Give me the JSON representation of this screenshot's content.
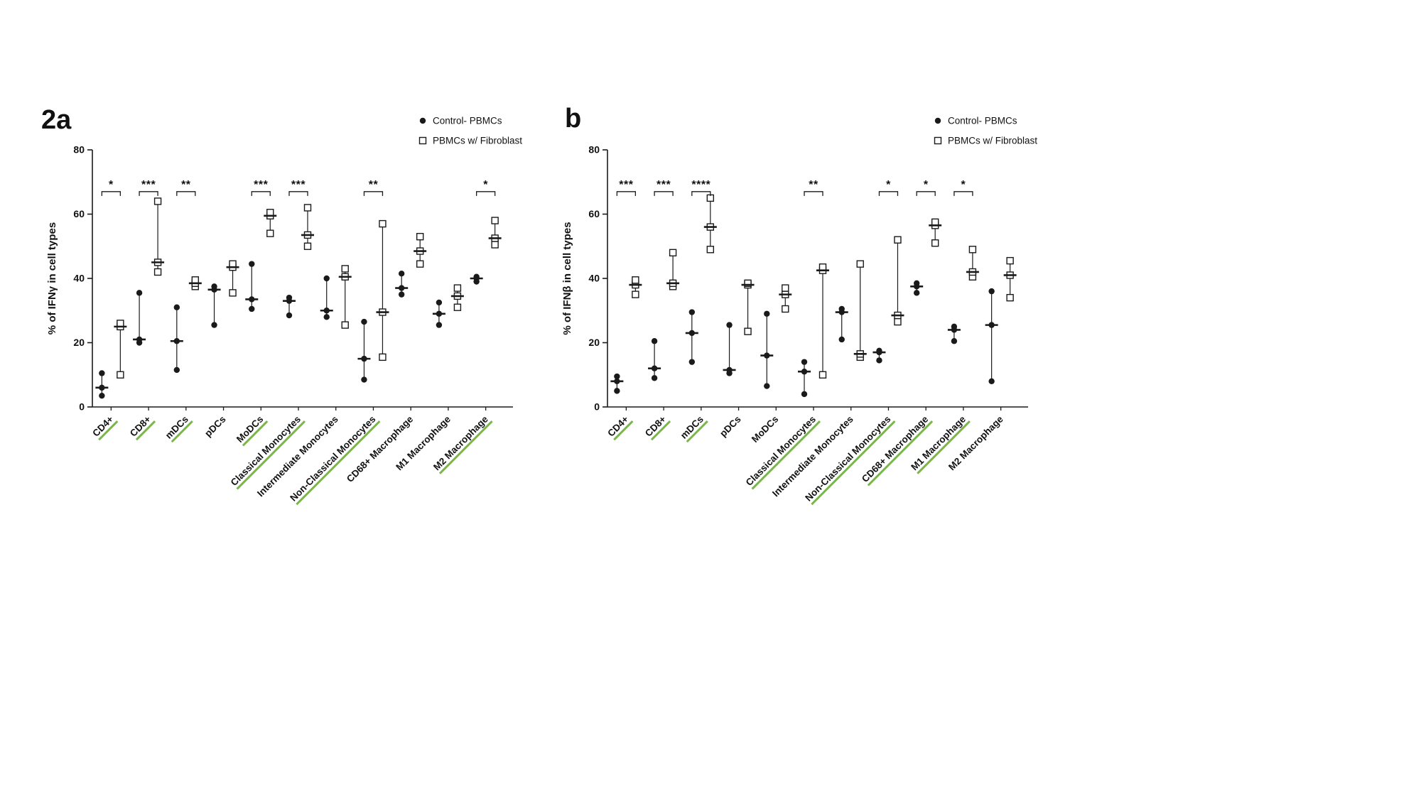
{
  "figure": {
    "panels": [
      {
        "label": "2a"
      },
      {
        "label": "b"
      }
    ]
  },
  "colors": {
    "marker": "#1a1a1a",
    "underline": "#7ab648",
    "background": "#ffffff"
  },
  "legend": {
    "control_label": "Control- PBMCs",
    "fibroblast_label": "PBMCs w/ Fibroblast"
  },
  "chart_data": [
    {
      "type": "scatter",
      "panel_label": "2a",
      "title": "",
      "xlabel": "",
      "ylabel": "% of IFNγ in cell types",
      "ylim": [
        0,
        80
      ],
      "yticks": [
        0,
        20,
        40,
        60,
        80
      ],
      "grid": false,
      "legend_position": "top-right",
      "bracket_value": 67,
      "categories": [
        "CD4+",
        "CD8+",
        "mDCs",
        "pDCs",
        "MoDCs",
        "Classical Monocytes",
        "Intermediate Monocytes",
        "Non-Classical Monocytes",
        "CD68+ Macrophage",
        "M1 Macrophage",
        "M2 Macrophage"
      ],
      "series": [
        {
          "name": "Control- PBMCs",
          "marker": "filled-circle",
          "values": [
            [
              3.5,
              6,
              10.5
            ],
            [
              20,
              21,
              35.5
            ],
            [
              11.5,
              20.5,
              31
            ],
            [
              25.5,
              36.5,
              37.5
            ],
            [
              30.5,
              33.5,
              44.5
            ],
            [
              28.5,
              33,
              34
            ],
            [
              28,
              30,
              40
            ],
            [
              8.5,
              15,
              26.5
            ],
            [
              35,
              37,
              41.5
            ],
            [
              25.5,
              29,
              32.5
            ],
            [
              39,
              40,
              40.5
            ]
          ]
        },
        {
          "name": "PBMCs w/ Fibroblast",
          "marker": "open-square",
          "values": [
            [
              10,
              25,
              26
            ],
            [
              42,
              45,
              64
            ],
            [
              37.5,
              38.5,
              39.5
            ],
            [
              35.5,
              43.5,
              44.5
            ],
            [
              54,
              59.5,
              60.5
            ],
            [
              50,
              53.5,
              62
            ],
            [
              25.5,
              40.5,
              43
            ],
            [
              15.5,
              29.5,
              57
            ],
            [
              44.5,
              48.5,
              53
            ],
            [
              31,
              34.5,
              37
            ],
            [
              50.5,
              52.5,
              58
            ]
          ]
        }
      ],
      "significance": [
        "*",
        "***",
        "**",
        null,
        "***",
        "***",
        null,
        "**",
        null,
        null,
        "*"
      ]
    },
    {
      "type": "scatter",
      "panel_label": "b",
      "title": "",
      "xlabel": "",
      "ylabel": "% of IFNβ in cell types",
      "ylim": [
        0,
        80
      ],
      "yticks": [
        0,
        20,
        40,
        60,
        80
      ],
      "grid": false,
      "legend_position": "top-right",
      "bracket_value": 67,
      "categories": [
        "CD4+",
        "CD8+",
        "mDCs",
        "pDCs",
        "MoDCs",
        "Classical Monocytes",
        "Intermediate Monocytes",
        "Non-Classical Monocytes",
        "CD68+ Macrophage",
        "M1 Macrophage",
        "M2 Macrophage"
      ],
      "series": [
        {
          "name": "Control- PBMCs",
          "marker": "filled-circle",
          "values": [
            [
              5,
              8,
              9.5
            ],
            [
              9,
              12,
              20.5
            ],
            [
              14,
              23,
              29.5
            ],
            [
              10.5,
              11.5,
              25.5
            ],
            [
              6.5,
              16,
              29
            ],
            [
              4,
              11,
              14
            ],
            [
              21,
              29.5,
              30.5
            ],
            [
              14.5,
              17,
              17.5
            ],
            [
              35.5,
              37.5,
              38.5
            ],
            [
              20.5,
              24,
              25
            ],
            [
              8,
              25.5,
              36
            ]
          ]
        },
        {
          "name": "PBMCs w/ Fibroblast",
          "marker": "open-square",
          "values": [
            [
              35,
              38,
              39.5
            ],
            [
              37.5,
              38.5,
              48
            ],
            [
              49,
              56,
              65
            ],
            [
              23.5,
              38,
              38.5
            ],
            [
              30.5,
              35,
              37
            ],
            [
              10,
              42.5,
              43.5
            ],
            [
              15.5,
              16.5,
              44.5
            ],
            [
              26.5,
              28.5,
              52
            ],
            [
              51,
              56.5,
              57.5
            ],
            [
              40.5,
              42,
              49
            ],
            [
              34,
              41,
              45.5
            ]
          ]
        }
      ],
      "significance": [
        "***",
        "***",
        "****",
        null,
        null,
        "**",
        null,
        "*",
        "*",
        "*",
        null
      ]
    }
  ]
}
